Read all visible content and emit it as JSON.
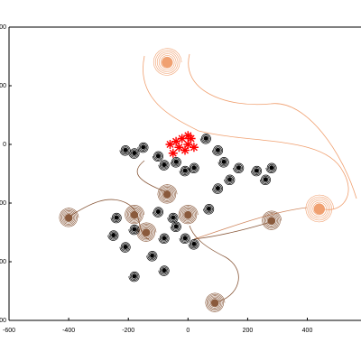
{
  "chart_data": {
    "type": "scatter",
    "xlim": [
      -600,
      580
    ],
    "ylim": [
      -600,
      400
    ],
    "xticks": [
      -600,
      -400,
      -200,
      0,
      200,
      400
    ],
    "yticks": [
      -600,
      -400,
      -200,
      0,
      200,
      400
    ],
    "series": [
      {
        "color": "#f0a070",
        "marker": "spiral",
        "x": [
          -70,
          440
        ],
        "values": [
          280,
          -220
        ]
      },
      {
        "color": "#8a5a3c",
        "marker": "spiral",
        "x": [
          -70,
          0,
          -180,
          -400,
          280,
          90,
          -140
        ],
        "values": [
          -170,
          -240,
          -240,
          -250,
          -260,
          -540,
          -300
        ]
      },
      {
        "color": "#000000",
        "marker": "spiral",
        "x": [
          -210,
          -180,
          -150,
          -100,
          -80,
          -40,
          -10,
          20,
          60,
          100,
          120,
          140,
          100,
          70,
          170,
          230,
          280,
          260,
          -100,
          -50,
          -40,
          -10,
          20,
          -180,
          -240,
          -210,
          -120,
          -80,
          -180,
          -250,
          -80
        ],
        "values": [
          -20,
          -30,
          -10,
          -40,
          -70,
          -60,
          -90,
          -80,
          20,
          -20,
          -60,
          -120,
          -150,
          -220,
          -80,
          -90,
          -80,
          -120,
          -230,
          -250,
          -280,
          -320,
          -340,
          -290,
          -250,
          -350,
          -380,
          -430,
          -450,
          -310,
          -320
        ]
      },
      {
        "color": "#ff0000",
        "marker": "asterisk",
        "x": [
          -40,
          -20,
          0,
          -10,
          -30,
          10,
          -50,
          20,
          -60,
          0
        ],
        "values": [
          10,
          20,
          0,
          -20,
          -10,
          20,
          -30,
          -10,
          0,
          30
        ]
      }
    ]
  }
}
